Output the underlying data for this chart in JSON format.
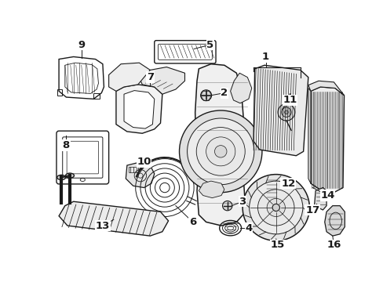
{
  "bg_color": "#ffffff",
  "line_color": "#1a1a1a",
  "fig_width": 4.89,
  "fig_height": 3.6,
  "dpi": 100,
  "label_fontsize": 9.5
}
